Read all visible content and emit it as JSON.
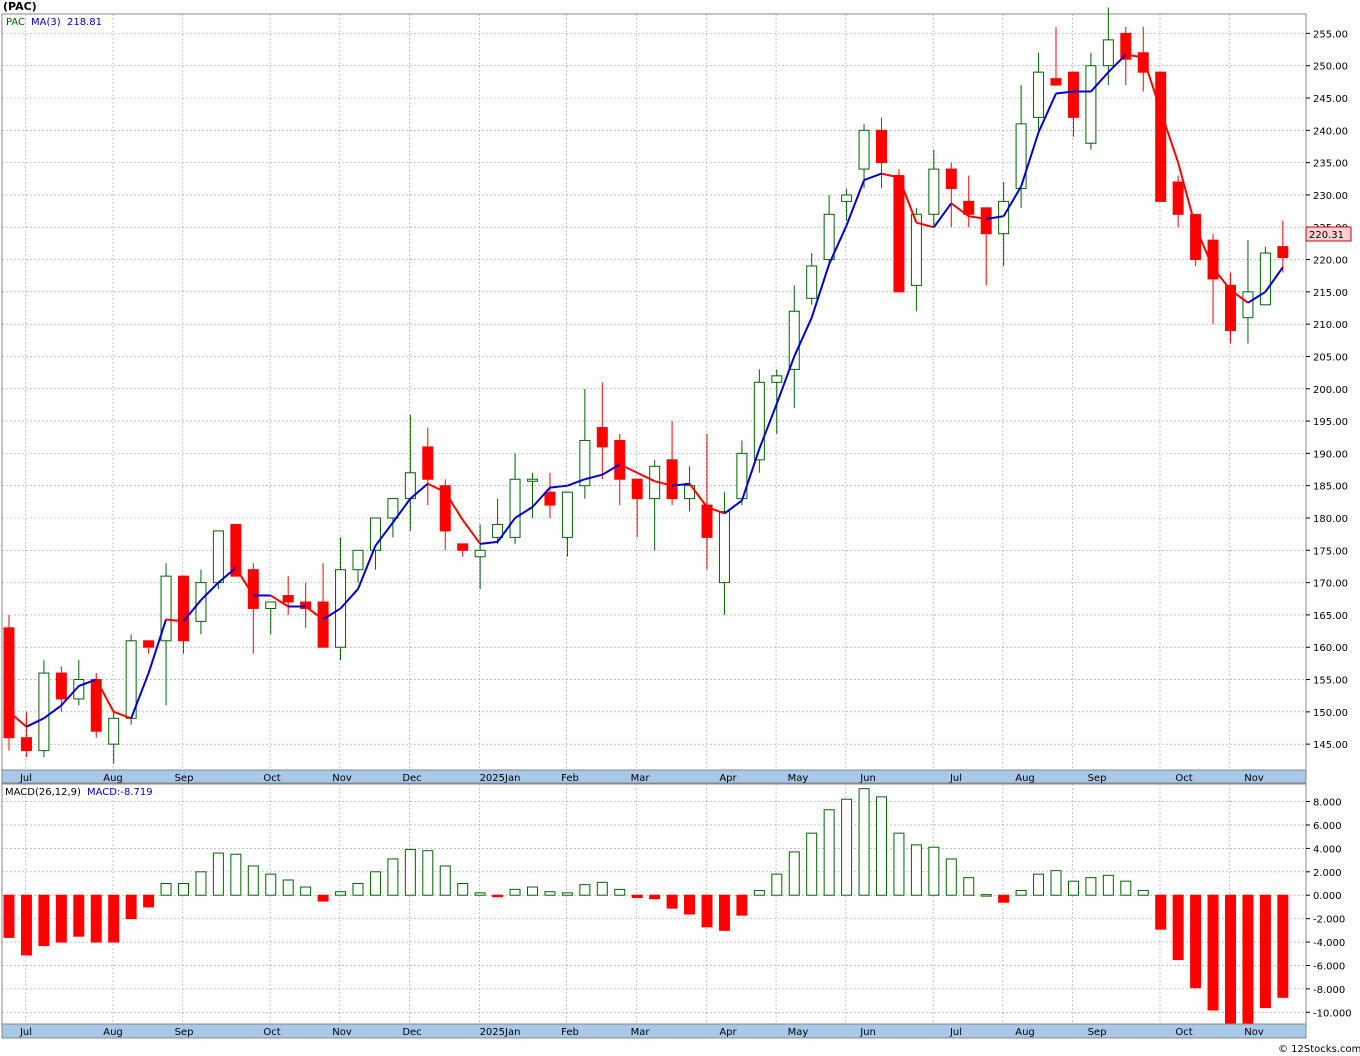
{
  "header": {
    "symbol": "(PAC)"
  },
  "footer": {
    "copyright": "© 12Stocks.com"
  },
  "price_panel": {
    "legend_symbol": "PAC",
    "legend_ma": "MA(3)",
    "legend_ma_value": "218.81",
    "last_price_label": "220.31",
    "y_ticks": [
      "145.00",
      "150.00",
      "155.00",
      "160.00",
      "165.00",
      "170.00",
      "175.00",
      "180.00",
      "185.00",
      "190.00",
      "195.00",
      "200.00",
      "205.00",
      "210.00",
      "215.00",
      "220.00",
      "225.00",
      "230.00",
      "235.00",
      "240.00",
      "245.00",
      "250.00",
      "255.00"
    ]
  },
  "macd_panel": {
    "legend_params": "MACD(26,12,9)",
    "legend_macd": "MACD:-8.719",
    "y_ticks": [
      "-10.000",
      "-8.000",
      "-6.000",
      "-4.000",
      "-2.000",
      "0.000",
      "2.000",
      "4.000",
      "6.000",
      "8.000"
    ]
  },
  "x_axis_labels": [
    "Jul",
    "Aug",
    "Sep",
    "Oct",
    "Nov",
    "Dec",
    "2025Jan",
    "Feb",
    "Mar",
    "Apr",
    "May",
    "Jun",
    "Jul",
    "Aug",
    "Sep",
    "Oct",
    "Nov"
  ],
  "colors": {
    "up": "#006400",
    "down": "#ff0000",
    "ma_up": "#0000cc",
    "ma_down": "#ff0000",
    "grid": "#a0a0a0",
    "axis_band": "#a8c8e8"
  },
  "chart_data": [
    {
      "type": "candlestick",
      "title": "(PAC)",
      "series_name": "PAC",
      "overlay": {
        "name": "MA(3)",
        "last_value": 218.81
      },
      "ylim": [
        141,
        258
      ],
      "last_price": 220.31,
      "month_labels": [
        "Jul",
        "Aug",
        "Sep",
        "Oct",
        "Nov",
        "Dec",
        "2025Jan",
        "Feb",
        "Mar",
        "Apr",
        "May",
        "Jun",
        "Jul",
        "Aug",
        "Sep",
        "Oct",
        "Nov"
      ],
      "candles": [
        {
          "o": 163,
          "h": 165,
          "l": 144,
          "c": 146
        },
        {
          "o": 146,
          "h": 150,
          "l": 143,
          "c": 144
        },
        {
          "o": 144,
          "h": 158,
          "l": 143,
          "c": 156
        },
        {
          "o": 156,
          "h": 157,
          "l": 150,
          "c": 152
        },
        {
          "o": 152,
          "h": 158,
          "l": 151,
          "c": 155
        },
        {
          "o": 155,
          "h": 156,
          "l": 146,
          "c": 147
        },
        {
          "o": 145,
          "h": 150,
          "l": 142,
          "c": 149
        },
        {
          "o": 149,
          "h": 162,
          "l": 148,
          "c": 161
        },
        {
          "o": 161,
          "h": 161,
          "l": 159,
          "c": 160
        },
        {
          "o": 161,
          "h": 173,
          "l": 151,
          "c": 171
        },
        {
          "o": 171,
          "h": 171,
          "l": 159,
          "c": 161
        },
        {
          "o": 164,
          "h": 172,
          "l": 162,
          "c": 170
        },
        {
          "o": 170,
          "h": 178,
          "l": 169,
          "c": 178
        },
        {
          "o": 179,
          "h": 179,
          "l": 171,
          "c": 171
        },
        {
          "o": 172,
          "h": 173,
          "l": 159,
          "c": 166
        },
        {
          "o": 166,
          "h": 167,
          "l": 162,
          "c": 167
        },
        {
          "o": 168,
          "h": 171,
          "l": 165,
          "c": 167
        },
        {
          "o": 167,
          "h": 170,
          "l": 163,
          "c": 166
        },
        {
          "o": 167,
          "h": 173,
          "l": 161,
          "c": 160
        },
        {
          "o": 160,
          "h": 177,
          "l": 158,
          "c": 172
        },
        {
          "o": 172,
          "h": 175,
          "l": 170,
          "c": 175
        },
        {
          "o": 175,
          "h": 179,
          "l": 172,
          "c": 180
        },
        {
          "o": 180,
          "h": 183,
          "l": 177,
          "c": 183
        },
        {
          "o": 183,
          "h": 196,
          "l": 178,
          "c": 187
        },
        {
          "o": 191,
          "h": 194,
          "l": 182,
          "c": 186
        },
        {
          "o": 185,
          "h": 186,
          "l": 175,
          "c": 178
        },
        {
          "o": 176,
          "h": 176,
          "l": 174,
          "c": 175
        },
        {
          "o": 174,
          "h": 179,
          "l": 169,
          "c": 175
        },
        {
          "o": 177,
          "h": 183,
          "l": 176,
          "c": 179
        },
        {
          "o": 177,
          "h": 190,
          "l": 176,
          "c": 186
        },
        {
          "o": 186,
          "h": 187,
          "l": 180,
          "c": 186
        },
        {
          "o": 184,
          "h": 187,
          "l": 180,
          "c": 182
        },
        {
          "o": 177,
          "h": 183,
          "l": 174,
          "c": 184
        },
        {
          "o": 185,
          "h": 200,
          "l": 183,
          "c": 192
        },
        {
          "o": 194,
          "h": 201,
          "l": 186,
          "c": 191
        },
        {
          "o": 192,
          "h": 193,
          "l": 182,
          "c": 186
        },
        {
          "o": 186,
          "h": 186,
          "l": 177,
          "c": 183
        },
        {
          "o": 183,
          "h": 189,
          "l": 175,
          "c": 188
        },
        {
          "o": 189,
          "h": 195,
          "l": 182,
          "c": 183
        },
        {
          "o": 183,
          "h": 188,
          "l": 181,
          "c": 185
        },
        {
          "o": 182,
          "h": 193,
          "l": 172,
          "c": 177
        },
        {
          "o": 170,
          "h": 184,
          "l": 165,
          "c": 181
        },
        {
          "o": 183,
          "h": 192,
          "l": 182,
          "c": 190
        },
        {
          "o": 189,
          "h": 203,
          "l": 187,
          "c": 201
        },
        {
          "o": 201,
          "h": 203,
          "l": 193,
          "c": 202
        },
        {
          "o": 203,
          "h": 216,
          "l": 197,
          "c": 212
        },
        {
          "o": 214,
          "h": 221,
          "l": 213,
          "c": 219
        },
        {
          "o": 220,
          "h": 230,
          "l": 219,
          "c": 227
        },
        {
          "o": 229,
          "h": 231,
          "l": 226,
          "c": 230
        },
        {
          "o": 234,
          "h": 241,
          "l": 231,
          "c": 240
        },
        {
          "o": 240,
          "h": 242,
          "l": 231,
          "c": 235
        },
        {
          "o": 233,
          "h": 234,
          "l": 215,
          "c": 215
        },
        {
          "o": 216,
          "h": 228,
          "l": 212,
          "c": 227
        },
        {
          "o": 227,
          "h": 237,
          "l": 225,
          "c": 234
        },
        {
          "o": 234,
          "h": 235,
          "l": 225,
          "c": 231
        },
        {
          "o": 229,
          "h": 233,
          "l": 225,
          "c": 227
        },
        {
          "o": 228,
          "h": 228,
          "l": 216,
          "c": 224
        },
        {
          "o": 224,
          "h": 232,
          "l": 219,
          "c": 229
        },
        {
          "o": 231,
          "h": 247,
          "l": 228,
          "c": 241
        },
        {
          "o": 242,
          "h": 252,
          "l": 240,
          "c": 249
        },
        {
          "o": 248,
          "h": 256,
          "l": 247,
          "c": 247
        },
        {
          "o": 249,
          "h": 249,
          "l": 239,
          "c": 242
        },
        {
          "o": 238,
          "h": 252,
          "l": 237,
          "c": 250
        },
        {
          "o": 250,
          "h": 259,
          "l": 247,
          "c": 254
        },
        {
          "o": 255,
          "h": 256,
          "l": 247,
          "c": 251
        },
        {
          "o": 252,
          "h": 256,
          "l": 246,
          "c": 249
        },
        {
          "o": 249,
          "h": 249,
          "l": 229,
          "c": 229
        },
        {
          "o": 232,
          "h": 233,
          "l": 225,
          "c": 227
        },
        {
          "o": 227,
          "h": 227,
          "l": 219,
          "c": 220
        },
        {
          "o": 223,
          "h": 224,
          "l": 210,
          "c": 217
        },
        {
          "o": 216,
          "h": 218,
          "l": 207,
          "c": 209
        },
        {
          "o": 211,
          "h": 223,
          "l": 207,
          "c": 215
        },
        {
          "o": 213,
          "h": 222,
          "l": 213,
          "c": 221
        },
        {
          "o": 222,
          "h": 226,
          "l": 218,
          "c": 220.31
        }
      ],
      "ma3": [
        150,
        147.7,
        149,
        151,
        154,
        155,
        150,
        149,
        156,
        164.3,
        164,
        167.3,
        170,
        172.3,
        168,
        168,
        166.3,
        166.3,
        164.3,
        166,
        169,
        175.7,
        179.3,
        183,
        185.3,
        184,
        179.7,
        176,
        176.3,
        180,
        181.7,
        184.7,
        185,
        186,
        186.7,
        188.3,
        187,
        185.7,
        185,
        185.3,
        181.7,
        180.7,
        182.7,
        190.7,
        197.7,
        205,
        211,
        219.3,
        225.3,
        232.3,
        233.3,
        232.7,
        225.7,
        225,
        228.7,
        226.7,
        226.3,
        226.7,
        231.3,
        239.7,
        245.7,
        246,
        246,
        249,
        251.7,
        251.3,
        243,
        235,
        225,
        218.7,
        215.3,
        213.3,
        215,
        218.81
      ]
    },
    {
      "type": "bar",
      "title": "MACD(26,12,9)",
      "series_name": "MACD",
      "last_value": -8.719,
      "ylim": [
        -11,
        9.5
      ],
      "values": [
        -3.6,
        -5.1,
        -4.3,
        -4.0,
        -3.5,
        -4.0,
        -4.0,
        -2.0,
        -1.0,
        1.0,
        1.0,
        2.0,
        3.6,
        3.5,
        2.5,
        1.8,
        1.3,
        0.7,
        -0.5,
        0.3,
        1.0,
        2.0,
        3.1,
        3.9,
        3.8,
        2.5,
        1.0,
        0.2,
        -0.1,
        0.5,
        0.7,
        0.3,
        0.2,
        0.9,
        1.1,
        0.5,
        -0.2,
        -0.3,
        -1.1,
        -1.6,
        -2.7,
        -3.0,
        -1.7,
        0.4,
        1.8,
        3.7,
        5.3,
        7.3,
        8.2,
        9.1,
        8.4,
        5.3,
        4.3,
        4.1,
        3.1,
        1.5,
        0.05,
        -0.6,
        0.4,
        1.8,
        2.1,
        1.2,
        1.5,
        1.7,
        1.2,
        0.4,
        -2.9,
        -5.5,
        -7.9,
        -9.8,
        -11.4,
        -11.0,
        -9.6,
        -8.719
      ]
    }
  ]
}
